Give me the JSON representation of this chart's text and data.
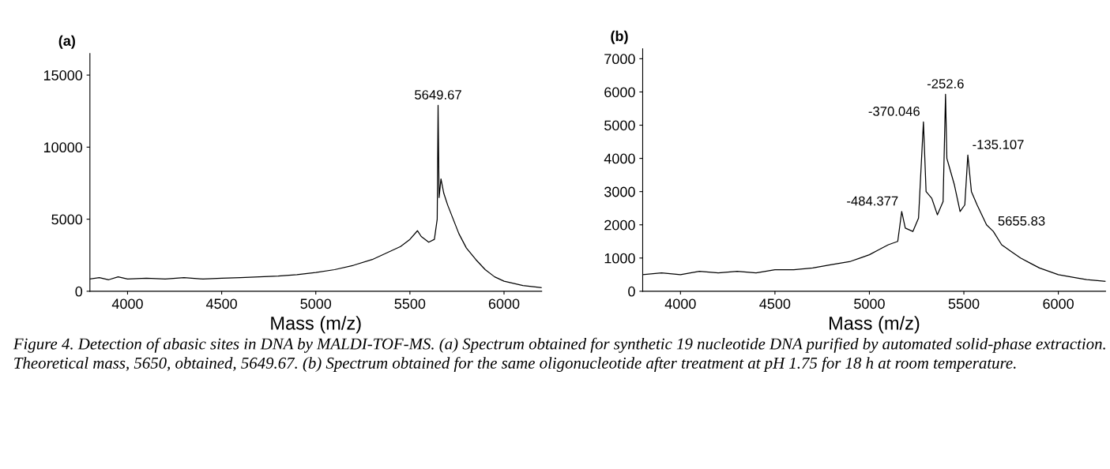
{
  "chart_data": [
    {
      "type": "line",
      "title": "(a)",
      "xlabel": "Mass (m/z)",
      "xlim": [
        3800,
        6200
      ],
      "ylim": [
        0,
        16500
      ],
      "xticks": [
        4000,
        4500,
        5000,
        5500,
        6000
      ],
      "yticks": [
        0,
        5000,
        10000,
        15000
      ],
      "grid": false,
      "legend": false,
      "x": [
        3800,
        3850,
        3900,
        3950,
        4000,
        4100,
        4200,
        4300,
        4400,
        4500,
        4600,
        4700,
        4800,
        4900,
        5000,
        5100,
        5200,
        5300,
        5400,
        5450,
        5500,
        5540,
        5560,
        5600,
        5630,
        5645,
        5649.67,
        5655,
        5665,
        5680,
        5700,
        5730,
        5760,
        5800,
        5850,
        5900,
        5950,
        6000,
        6100,
        6200
      ],
      "series": [
        {
          "color": "#000000",
          "values": [
            850,
            950,
            800,
            1000,
            850,
            900,
            850,
            950,
            850,
            900,
            950,
            1000,
            1050,
            1150,
            1300,
            1500,
            1800,
            2200,
            2800,
            3100,
            3600,
            4200,
            3800,
            3400,
            3600,
            5000,
            12900,
            6500,
            7800,
            6800,
            6000,
            5000,
            4000,
            3000,
            2200,
            1500,
            1000,
            700,
            400,
            250
          ]
        }
      ],
      "annotations": [
        {
          "text": "5649.67",
          "x": 5649.67,
          "y": 12900
        },
        "Figure 4. Detection of abasic sites in DNA by MALDI-TOF-MS. (a) Spectrum obtained for synthetic 19 nucleotide DNA purified by automated solid-phase extraction. Theoretical mass, 5650, obtained, 5649.67. (b) Spectrum obtained for the same oligonucleotide after treatment at pH 1.75 for 18 h at room temperature."
      ]
    },
    {
      "type": "line",
      "title": "(b)",
      "xlabel": "Mass (m/z)",
      "xlim": [
        3800,
        6250
      ],
      "ylim": [
        0,
        7300
      ],
      "xticks": [
        4000,
        4500,
        5000,
        5500,
        6000
      ],
      "yticks": [
        0,
        1000,
        2000,
        3000,
        4000,
        5000,
        6000,
        7000
      ],
      "grid": false,
      "legend": false,
      "x": [
        3800,
        3900,
        4000,
        4100,
        4200,
        4300,
        4400,
        4500,
        4600,
        4700,
        4800,
        4900,
        4950,
        5000,
        5050,
        5100,
        5150,
        5171,
        5190,
        5230,
        5260,
        5286,
        5300,
        5330,
        5360,
        5390,
        5403,
        5410,
        5420,
        5450,
        5480,
        5505,
        5521,
        5540,
        5570,
        5620,
        5656,
        5700,
        5750,
        5800,
        5850,
        5900,
        6000,
        6100,
        6150,
        6250
      ],
      "series": [
        {
          "color": "#000000",
          "values": [
            500,
            550,
            500,
            600,
            550,
            600,
            550,
            650,
            650,
            700,
            800,
            900,
            1000,
            1100,
            1250,
            1400,
            1500,
            2400,
            1900,
            1800,
            2200,
            5100,
            3000,
            2800,
            2300,
            2700,
            5930,
            4000,
            3800,
            3200,
            2400,
            2600,
            4100,
            3000,
            2600,
            2000,
            1800,
            1400,
            1200,
            1000,
            850,
            700,
            500,
            400,
            350,
            300
          ]
        }
      ],
      "annotations": [
        {
          "text": "-484.377",
          "x": 5171,
          "y": 2400
        },
        {
          "text": "-370.046",
          "x": 5286,
          "y": 5100
        },
        {
          "text": "-252.6",
          "x": 5403,
          "y": 5930
        },
        {
          "text": "-135.107",
          "x": 5521,
          "y": 4100
        },
        {
          "text": "5655.83",
          "x": 5656,
          "y": 1800
        }
      ]
    }
  ]
}
